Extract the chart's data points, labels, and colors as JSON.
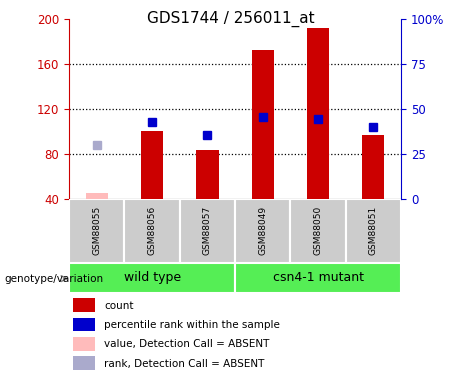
{
  "title": "GDS1744 / 256011_at",
  "samples": [
    "GSM88055",
    "GSM88056",
    "GSM88057",
    "GSM88049",
    "GSM88050",
    "GSM88051"
  ],
  "count_values": [
    null,
    100,
    83,
    172,
    192,
    97
  ],
  "count_absent": [
    45,
    null,
    null,
    null,
    null,
    null
  ],
  "rank_values": [
    null,
    108,
    97,
    113,
    111,
    104
  ],
  "rank_absent": [
    88,
    null,
    null,
    null,
    null,
    null
  ],
  "ylim_left": [
    40,
    200
  ],
  "ylim_right": [
    0,
    100
  ],
  "yticks_left": [
    40,
    80,
    120,
    160,
    200
  ],
  "yticks_right": [
    0,
    25,
    50,
    75,
    100
  ],
  "ytick_labels_right": [
    "0",
    "25",
    "50",
    "75",
    "100%"
  ],
  "bar_color_present": "#cc0000",
  "bar_color_absent": "#ffbbbb",
  "marker_color_present": "#0000cc",
  "marker_color_absent": "#aaaacc",
  "bar_width": 0.4,
  "marker_size": 6,
  "tick_color_left": "#cc0000",
  "tick_color_right": "#0000cc",
  "group_bg_color": "#55ee55",
  "sample_bg_color": "#cccccc",
  "legend_items": [
    {
      "label": "count",
      "color": "#cc0000"
    },
    {
      "label": "percentile rank within the sample",
      "color": "#0000cc"
    },
    {
      "label": "value, Detection Call = ABSENT",
      "color": "#ffbbbb"
    },
    {
      "label": "rank, Detection Call = ABSENT",
      "color": "#aaaacc"
    }
  ],
  "genotype_label": "genotype/variation",
  "group_spans": [
    [
      0,
      3,
      "wild type"
    ],
    [
      3,
      6,
      "csn4-1 mutant"
    ]
  ]
}
